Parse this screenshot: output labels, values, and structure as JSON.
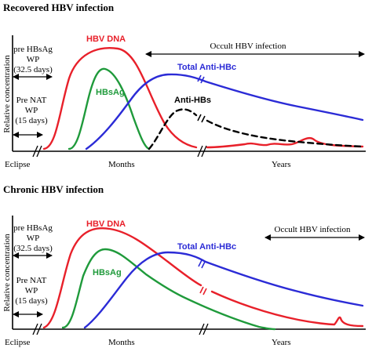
{
  "colors": {
    "hbv_dna": "#e8202a",
    "hbsag": "#1f9a3b",
    "anti_hbc": "#2b2bd6",
    "anti_hbs": "#000000"
  },
  "panels": [
    {
      "title": "Recovered  HBV infection",
      "ylabel": "Relative concentration",
      "wp1": [
        "pre HBsAg",
        "WP",
        "(32.5 days)"
      ],
      "wp2": [
        "Pre NAT",
        "WP",
        "(15 days)"
      ],
      "occult": "Occult HBV infection",
      "labels": {
        "hbv_dna": "HBV DNA",
        "hbsag": "HBsAg",
        "anti_hbc": "Total Anti-HBc",
        "anti_hbs": "Anti-HBs"
      },
      "x_ticks": {
        "eclipse": "Eclipse",
        "months": "Months",
        "years": "Years"
      }
    },
    {
      "title": "Chronic  HBV infection",
      "ylabel": "Relative concentration",
      "wp1": [
        "pre HBsAg",
        "WP",
        "(32.5 days)"
      ],
      "wp2": [
        "Pre NAT",
        "WP",
        "(15 days)"
      ],
      "occult": "Occult HBV infection",
      "labels": {
        "hbv_dna": "HBV DNA",
        "hbsag": "HBsAg",
        "anti_hbc": "Total Anti-HBc"
      },
      "x_ticks": {
        "eclipse": "Eclipse",
        "months": "Months",
        "years": "Years"
      }
    }
  ]
}
